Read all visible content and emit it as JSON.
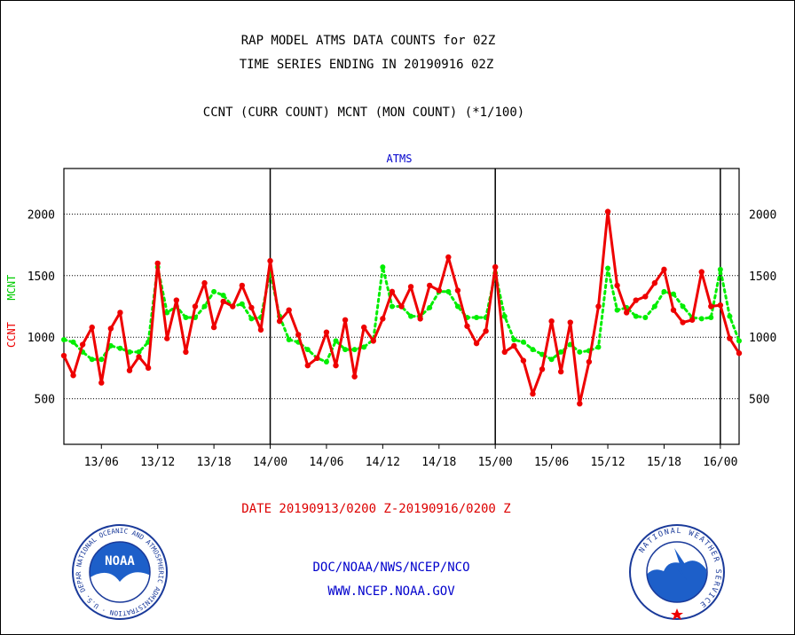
{
  "header": {
    "title_line1": "RAP MODEL ATMS DATA COUNTS for 02Z",
    "title_line2": "TIME SERIES ENDING IN 20190916 02Z",
    "title_line3": "CCNT (CURR COUNT) MCNT (MON COUNT) (*1/100)"
  },
  "footer": {
    "date_range": "DATE 20190913/0200 Z-20190916/0200 Z",
    "org": "DOC/NOAA/NWS/NCEP/NCO",
    "url": "WWW.NCEP.NOAA.GOV",
    "noaa_logo_text": "NOAA",
    "noaa_ring_text": "NATIONAL OCEANIC AND ATMOSPHERIC ADMINISTRATION · U.S. DEPARTMENT OF COMMERCE",
    "nws_ring_text": "NATIONAL WEATHER SERVICE"
  },
  "colors": {
    "ccnt": "#ee0000",
    "mcnt": "#00ee00",
    "label_blue": "#0000cc"
  },
  "chart_data": {
    "type": "line",
    "title": "ATMS",
    "ylabel_ccnt": "CCNT",
    "ylabel_mcnt": "MCNT",
    "ylim": [
      130,
      2370
    ],
    "yticks": [
      500,
      1000,
      1500,
      2000
    ],
    "grid": true,
    "x_start": "13/02",
    "x_step_hours": 1,
    "xticks": [
      {
        "label": "13/06",
        "index": 4
      },
      {
        "label": "13/12",
        "index": 10
      },
      {
        "label": "13/18",
        "index": 16
      },
      {
        "label": "14/00",
        "index": 22
      },
      {
        "label": "14/06",
        "index": 28
      },
      {
        "label": "14/12",
        "index": 34
      },
      {
        "label": "14/18",
        "index": 40
      },
      {
        "label": "15/00",
        "index": 46
      },
      {
        "label": "15/06",
        "index": 52
      },
      {
        "label": "15/12",
        "index": 58
      },
      {
        "label": "15/18",
        "index": 64
      },
      {
        "label": "16/00",
        "index": 70
      }
    ],
    "day_boundaries": [
      22,
      46,
      70
    ],
    "series": [
      {
        "name": "CCNT",
        "values": [
          850,
          690,
          940,
          1080,
          630,
          1070,
          1200,
          730,
          840,
          750,
          1600,
          990,
          1300,
          880,
          1250,
          1440,
          1080,
          1290,
          1250,
          1420,
          1240,
          1060,
          1620,
          1130,
          1220,
          1020,
          770,
          830,
          1040,
          770,
          1140,
          680,
          1080,
          970,
          1150,
          1370,
          1250,
          1410,
          1150,
          1420,
          1380,
          1650,
          1380,
          1090,
          950,
          1050,
          1570,
          880,
          930,
          810,
          540,
          740,
          1130,
          720,
          1120,
          460,
          800,
          1250,
          2020,
          1420,
          1200,
          1300,
          1330,
          1440,
          1550,
          1220,
          1120,
          1140,
          1530,
          1250,
          1260,
          990,
          870
        ]
      },
      {
        "name": "MCNT",
        "values": [
          980,
          960,
          880,
          820,
          820,
          930,
          910,
          880,
          880,
          960,
          1570,
          1200,
          1250,
          1160,
          1160,
          1250,
          1370,
          1340,
          1250,
          1270,
          1150,
          1160,
          1530,
          1170,
          980,
          960,
          900,
          830,
          800,
          970,
          900,
          900,
          920,
          980,
          1570,
          1250,
          1250,
          1170,
          1170,
          1240,
          1370,
          1370,
          1250,
          1160,
          1160,
          1160,
          1520,
          1170,
          980,
          960,
          900,
          860,
          820,
          880,
          940,
          880,
          890,
          920,
          1560,
          1220,
          1240,
          1170,
          1160,
          1250,
          1370,
          1350,
          1250,
          1160,
          1150,
          1160,
          1550,
          1170,
          970
        ]
      }
    ]
  }
}
